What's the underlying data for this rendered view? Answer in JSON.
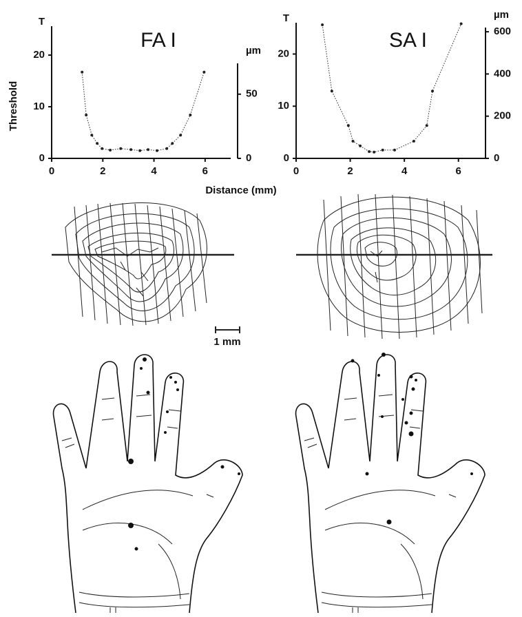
{
  "chart_data": [
    {
      "type": "line",
      "title": "FA I",
      "ylabel": "Threshold",
      "y_unit_label": "T",
      "y2label": "µm",
      "x": [
        1.19,
        1.35,
        1.57,
        1.78,
        1.97,
        2.29,
        2.7,
        3.1,
        3.45,
        3.77,
        4.12,
        4.5,
        4.72,
        5.04,
        5.42,
        5.96
      ],
      "values": [
        16.7,
        8.4,
        4.5,
        2.9,
        1.9,
        1.6,
        1.9,
        1.7,
        1.5,
        1.7,
        1.5,
        1.9,
        2.9,
        4.5,
        8.4,
        16.7
      ],
      "color": "#222222",
      "xlim": [
        0,
        7
      ],
      "xticks": [
        0,
        2,
        4,
        6
      ],
      "ylim": [
        0,
        25.6
      ],
      "yticks": [
        0,
        10,
        20
      ],
      "y2lim": [
        0,
        74
      ],
      "y2ticks": [
        0,
        50
      ]
    },
    {
      "type": "line",
      "title": "SA I",
      "y_unit_label": "T",
      "y2label": "µm",
      "x": [
        0.97,
        1.32,
        1.93,
        2.1,
        2.37,
        2.7,
        2.88,
        3.2,
        3.64,
        4.35,
        4.83,
        5.04,
        6.1
      ],
      "values": [
        25.6,
        12.9,
        6.3,
        3.3,
        2.4,
        1.3,
        1.2,
        1.6,
        1.6,
        3.3,
        6.3,
        12.9,
        25.8
      ],
      "color": "#222222",
      "xlim": [
        0,
        7
      ],
      "xticks": [
        0,
        2,
        4,
        6
      ],
      "ylim": [
        0,
        26
      ],
      "yticks": [
        0,
        10,
        20
      ],
      "y2lim": [
        0,
        620
      ],
      "y2ticks": [
        0,
        200,
        400,
        600
      ]
    }
  ],
  "xlabel": "Distance (mm)",
  "scale_bar": "1 mm"
}
